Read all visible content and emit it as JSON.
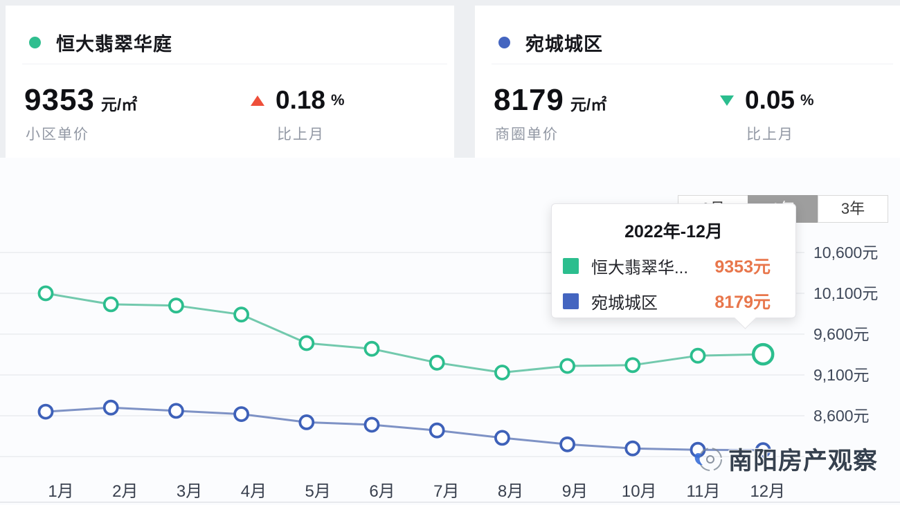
{
  "summary_cards": [
    {
      "dot_color": "#2fbe8f",
      "name": "恒大翡翠华庭",
      "price": "9353",
      "price_unit": "元/㎡",
      "price_label": "小区单价",
      "change_direction": "up",
      "change_color": "#ee4f3a",
      "change_value": "0.18",
      "change_unit": "%",
      "change_label": "比上月"
    },
    {
      "dot_color": "#4465c0",
      "name": "宛城城区",
      "price": "8179",
      "price_unit": "元/㎡",
      "price_label": "商圈单价",
      "change_direction": "down",
      "change_color": "#2bbd8e",
      "change_value": "0.05",
      "change_unit": "%",
      "change_label": "比上月"
    }
  ],
  "period_tabs": {
    "options": [
      "6月",
      "1年",
      "3年"
    ],
    "selected_index": 1
  },
  "tooltip": {
    "title": "2022年-12月",
    "rows": [
      {
        "swatch_color": "#2cbe8e",
        "label": "恒大翡翠华...",
        "value": "9353元"
      },
      {
        "swatch_color": "#4465c0",
        "label": "宛城城区",
        "value": "8179元"
      }
    ]
  },
  "watermark": {
    "icon": "camera-logo-icon",
    "text": "南阳房产观察"
  },
  "chart_data": {
    "type": "line",
    "title": "",
    "categories": [
      "1月",
      "2月",
      "3月",
      "4月",
      "5月",
      "6月",
      "7月",
      "8月",
      "9月",
      "10月",
      "11月",
      "12月"
    ],
    "series": [
      {
        "name": "恒大翡翠华庭",
        "marker_color": "#2cbe8e",
        "line_color": "#72c9ad",
        "values": [
          10100,
          9965,
          9950,
          9840,
          9490,
          9420,
          9250,
          9130,
          9210,
          9220,
          9336,
          9353
        ],
        "highlight_last": true
      },
      {
        "name": "宛城城区",
        "marker_color": "#3e61b9",
        "line_color": "#7e92c5",
        "values": [
          8650,
          8700,
          8660,
          8620,
          8520,
          8490,
          8420,
          8330,
          8250,
          8200,
          8183,
          8179
        ],
        "highlight_last": false
      }
    ],
    "y_axis": {
      "side": "right",
      "unit": "元",
      "ticks": [
        {
          "value": 10600,
          "label": "10,600元"
        },
        {
          "value": 10100,
          "label": "10,100元"
        },
        {
          "value": 9600,
          "label": "9,600元"
        },
        {
          "value": 9100,
          "label": "9,100元"
        },
        {
          "value": 8600,
          "label": "8,600元"
        }
      ],
      "unlabeled_grid_values": [
        8100
      ],
      "range": [
        8100,
        10600
      ]
    },
    "xlabel": "",
    "ylabel": "",
    "grid": true,
    "legend_position": "none"
  }
}
